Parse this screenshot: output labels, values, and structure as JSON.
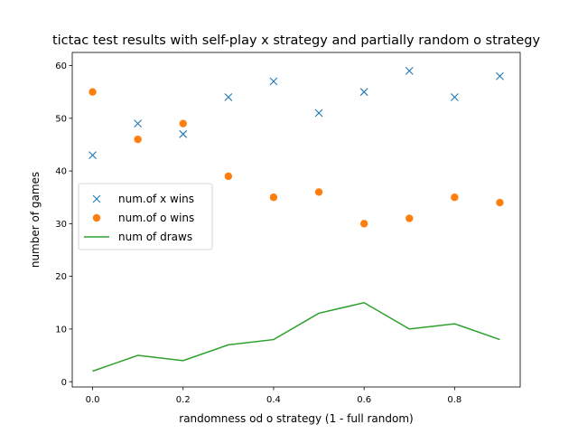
{
  "chart_data": {
    "type": "scatter",
    "title": "tictac test results with self-play x strategy and partially random o strategy",
    "xlabel": "randomness od o strategy (1 - full random)",
    "ylabel": "number of games",
    "xlim": [
      -0.045,
      0.945
    ],
    "ylim": [
      -1,
      62.5
    ],
    "xticks": [
      0.0,
      0.2,
      0.4,
      0.6,
      0.8
    ],
    "xtick_labels": [
      "0.0",
      "0.2",
      "0.4",
      "0.6",
      "0.8"
    ],
    "yticks": [
      0,
      10,
      20,
      30,
      40,
      50,
      60
    ],
    "ytick_labels": [
      "0",
      "10",
      "20",
      "30",
      "40",
      "50",
      "60"
    ],
    "grid": false,
    "legend_position": "center-left",
    "x": [
      0.0,
      0.1,
      0.2,
      0.3,
      0.4,
      0.5,
      0.6,
      0.7,
      0.8,
      0.9
    ],
    "series": [
      {
        "name": "num.of x wins",
        "kind": "scatter",
        "marker": "x",
        "color": "#1f77b4",
        "values": [
          43,
          49,
          47,
          54,
          57,
          51,
          55,
          59,
          54,
          58
        ]
      },
      {
        "name": "num.of o wins",
        "kind": "scatter",
        "marker": "o",
        "color": "#ff7f0e",
        "values": [
          55,
          46,
          49,
          39,
          35,
          36,
          30,
          31,
          35,
          34
        ]
      },
      {
        "name": "num of draws",
        "kind": "line",
        "color": "#2ca02c",
        "values": [
          2,
          5,
          4,
          7,
          8,
          13,
          15,
          10,
          11,
          8
        ]
      }
    ]
  }
}
